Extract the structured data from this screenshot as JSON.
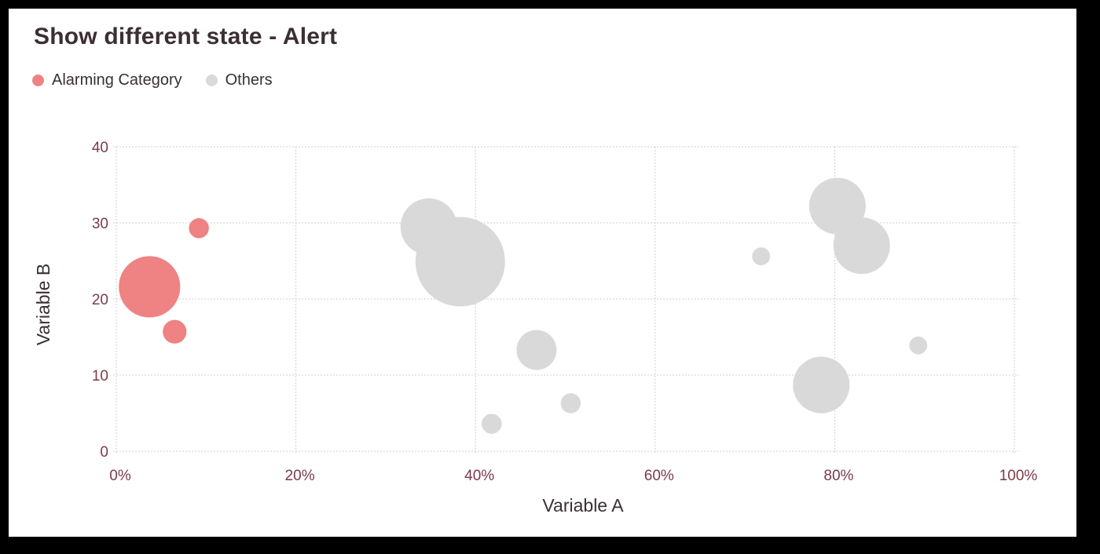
{
  "chart_data": {
    "type": "scatter",
    "title": "Show different state - Alert",
    "xlabel": "Variable A",
    "ylabel": "Variable B",
    "xlim": [
      0,
      100
    ],
    "ylim": [
      0,
      40
    ],
    "x_ticks": [
      0,
      20,
      40,
      60,
      80,
      100
    ],
    "x_tick_labels": [
      "0%",
      "20%",
      "40%",
      "60%",
      "80%",
      "100%"
    ],
    "y_ticks": [
      0,
      10,
      20,
      30,
      40
    ],
    "y_tick_labels": [
      "0",
      "10",
      "20",
      "30",
      "40"
    ],
    "grid": true,
    "legend_position": "top-left",
    "series": [
      {
        "name": "Alarming Category",
        "color": "#ef8282",
        "points": [
          {
            "x": 9.2,
            "y": 29.3,
            "size": 5
          },
          {
            "x": 3.7,
            "y": 21.6,
            "size": 47
          },
          {
            "x": 6.5,
            "y": 15.7,
            "size": 7
          }
        ]
      },
      {
        "name": "Others",
        "color": "#d9d9d9",
        "points": [
          {
            "x": 34.8,
            "y": 29.5,
            "size": 40
          },
          {
            "x": 38.3,
            "y": 24.9,
            "size": 100
          },
          {
            "x": 46.8,
            "y": 13.3,
            "size": 20
          },
          {
            "x": 50.6,
            "y": 6.3,
            "size": 5
          },
          {
            "x": 41.8,
            "y": 3.6,
            "size": 5
          },
          {
            "x": 71.8,
            "y": 25.6,
            "size": 4
          },
          {
            "x": 80.3,
            "y": 32.2,
            "size": 40
          },
          {
            "x": 83.0,
            "y": 27.0,
            "size": 40
          },
          {
            "x": 78.5,
            "y": 8.7,
            "size": 40
          },
          {
            "x": 89.3,
            "y": 13.9,
            "size": 4
          }
        ]
      }
    ]
  }
}
